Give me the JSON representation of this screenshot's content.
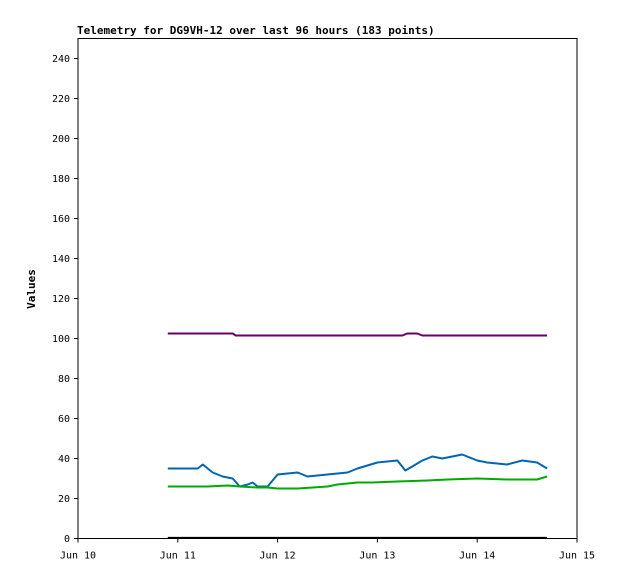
{
  "chart_data": {
    "type": "line",
    "title": "Telemetry for DG9VH-12 over last 96 hours (183 points)",
    "xlabel": "",
    "ylabel": "Values",
    "x_unit": "day of June",
    "xlim": [
      10,
      15
    ],
    "ylim": [
      0,
      250
    ],
    "x_ticks": [
      {
        "value": 10,
        "label": "Jun 10"
      },
      {
        "value": 11,
        "label": "Jun 11"
      },
      {
        "value": 12,
        "label": "Jun 12"
      },
      {
        "value": 13,
        "label": "Jun 13"
      },
      {
        "value": 14,
        "label": "Jun 14"
      },
      {
        "value": 15,
        "label": "Jun 15"
      }
    ],
    "y_ticks": [
      0,
      20,
      40,
      60,
      80,
      100,
      120,
      140,
      160,
      180,
      200,
      220,
      240
    ],
    "grid": false,
    "series": [
      {
        "color": "#660066",
        "x": [
          10.9,
          11.55,
          11.58,
          13.25,
          13.3,
          13.4,
          13.45,
          14.7
        ],
        "y": [
          102.5,
          102.5,
          101.5,
          101.5,
          102.5,
          102.5,
          101.5,
          101.5
        ]
      },
      {
        "color": "#0066b3",
        "x": [
          10.9,
          11.1,
          11.2,
          11.25,
          11.35,
          11.45,
          11.55,
          11.62,
          11.7,
          11.75,
          11.8,
          11.9,
          12.0,
          12.2,
          12.3,
          12.5,
          12.7,
          12.8,
          13.0,
          13.2,
          13.28,
          13.35,
          13.45,
          13.55,
          13.65,
          13.75,
          13.85,
          13.95,
          14.0,
          14.1,
          14.3,
          14.45,
          14.6,
          14.7
        ],
        "y": [
          35,
          35,
          35,
          37,
          33,
          31,
          30,
          26,
          27,
          28,
          26,
          26,
          32,
          33,
          31,
          32,
          33,
          35,
          38,
          39,
          34,
          36,
          39,
          41,
          40,
          41,
          42,
          40,
          39,
          38,
          37,
          39,
          38,
          35
        ]
      },
      {
        "color": "#00aa00",
        "x": [
          10.9,
          11.1,
          11.3,
          11.5,
          11.62,
          11.8,
          11.9,
          12.0,
          12.2,
          12.5,
          12.6,
          12.8,
          12.95,
          13.2,
          13.5,
          13.7,
          14.0,
          14.3,
          14.45,
          14.6,
          14.7
        ],
        "y": [
          26,
          26,
          26,
          26.5,
          26,
          25.5,
          25.5,
          25,
          25,
          26,
          27,
          28,
          28,
          28.5,
          29,
          29.5,
          30,
          29.5,
          29.5,
          29.5,
          31
        ]
      },
      {
        "color": "#000000",
        "x": [
          10.9,
          14.7
        ],
        "y": [
          0.3,
          0.3
        ]
      }
    ]
  }
}
